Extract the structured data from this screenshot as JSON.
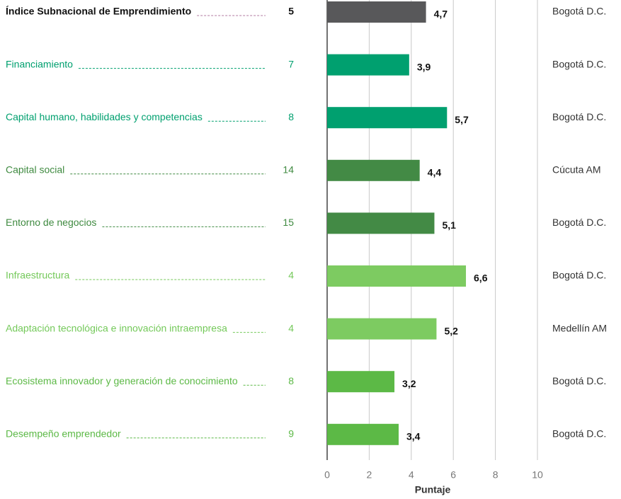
{
  "chart_data": {
    "type": "bar",
    "orientation": "horizontal",
    "categories": [
      "Índice Subnacional de Emprendimiento",
      "Financiamiento",
      "Capital humano, habilidades y competencias",
      "Capital social",
      "Entorno de negocios",
      "Infraestructura",
      "Adaptación tecnológica e innovación intraempresa",
      "Ecosistema innovador y generación de conocimiento",
      "Desempeño emprendedor"
    ],
    "ranks": [
      5,
      7,
      8,
      14,
      15,
      4,
      4,
      8,
      9
    ],
    "values": [
      4.7,
      3.9,
      5.7,
      4.4,
      5.1,
      6.6,
      5.2,
      3.2,
      3.4
    ],
    "value_labels": [
      "4,7",
      "3,9",
      "5,7",
      "4,4",
      "5,1",
      "6,6",
      "5,2",
      "3,2",
      "3,4"
    ],
    "best": [
      "Bogotá D.C.",
      "Bogotá D.C.",
      "Bogotá D.C.",
      "Cúcuta AM",
      "Bogotá D.C.",
      "Bogotá D.C.",
      "Medellín AM",
      "Bogotá D.C.",
      "Bogotá D.C."
    ],
    "colors": [
      "#58585a",
      "#00a06f",
      "#00a06f",
      "#438a45",
      "#438a45",
      "#7dcb61",
      "#7dcb61",
      "#5cb946",
      "#5cb946"
    ],
    "label_colors": [
      "#111111",
      "#00a06f",
      "#00a06f",
      "#3f8a40",
      "#3f8a40",
      "#74c95a",
      "#74c95a",
      "#5cb946",
      "#5cb946"
    ],
    "xlabel": "Puntaje",
    "xlim": [
      0,
      10
    ],
    "xticks": [
      0,
      2,
      4,
      6,
      8,
      10
    ],
    "grid": true
  }
}
